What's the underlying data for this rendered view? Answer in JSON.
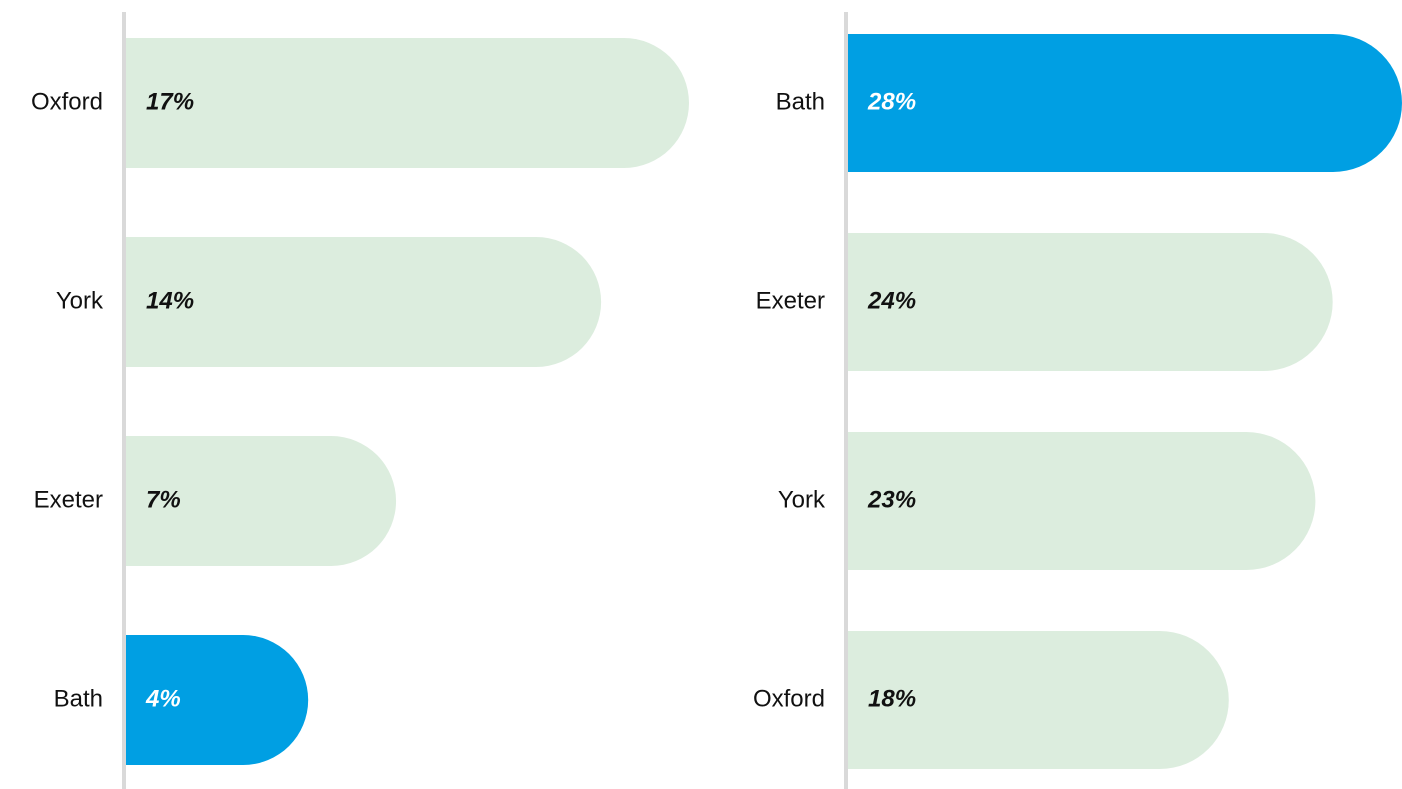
{
  "chart_data": [
    {
      "type": "bar",
      "categories": [
        "Oxford",
        "York",
        "Exeter",
        "Bath"
      ],
      "values": [
        17,
        14,
        7,
        4
      ],
      "value_labels": [
        "17%",
        "14%",
        "7%",
        "4%"
      ],
      "colors": [
        "#dcedde",
        "#dcedde",
        "#dcedde",
        "#009fe3"
      ]
    },
    {
      "type": "bar",
      "categories": [
        "Bath",
        "Exeter",
        "York",
        "Oxford"
      ],
      "values": [
        28,
        24,
        23,
        18
      ],
      "value_labels": [
        "28%",
        "24%",
        "23%",
        "18%"
      ],
      "colors": [
        "#009fe3",
        "#dcedde",
        "#dcedde",
        "#dcedde"
      ]
    }
  ]
}
